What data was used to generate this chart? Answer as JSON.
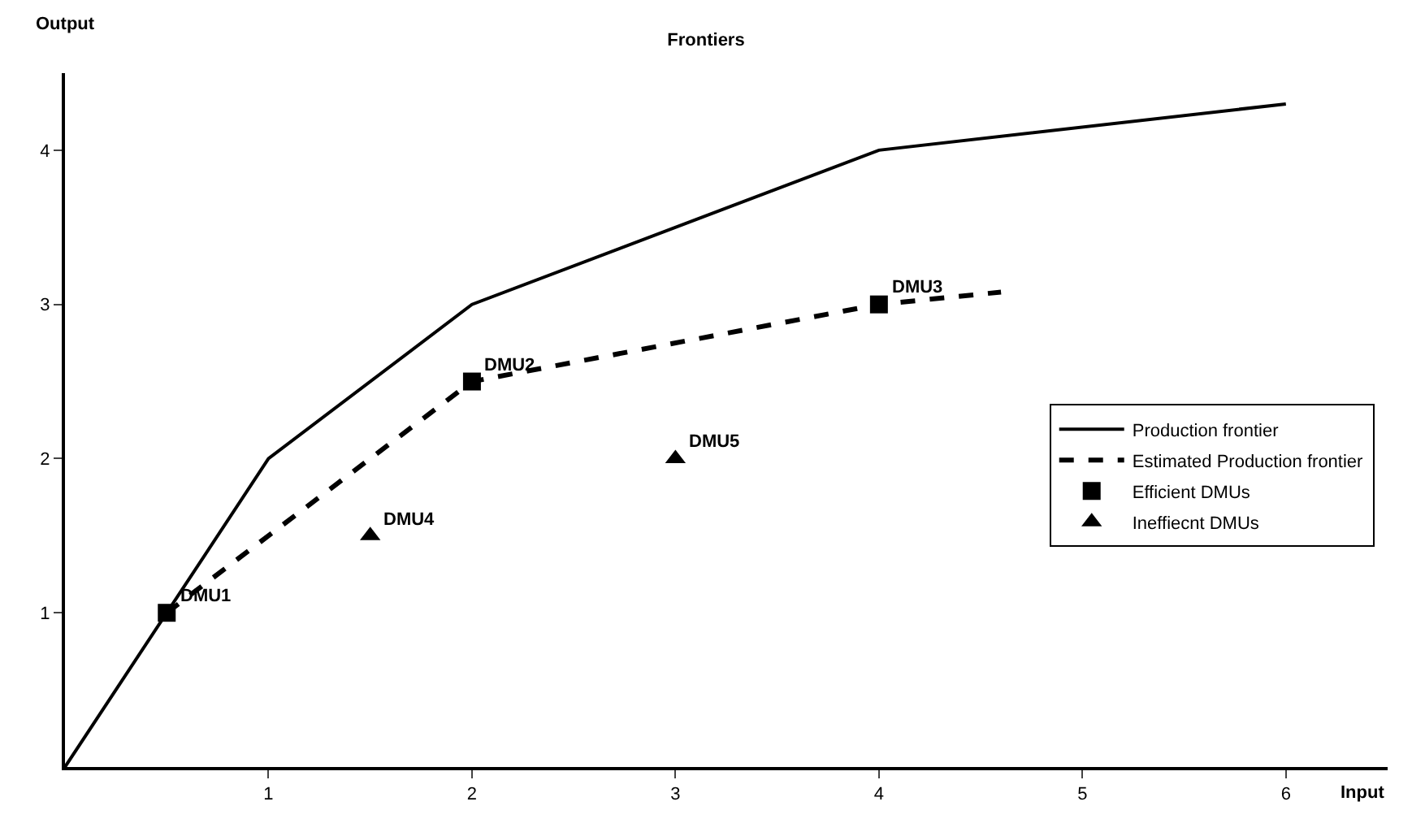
{
  "chart_data": {
    "type": "line",
    "title": "Frontiers",
    "xlabel": "Input",
    "ylabel": "Output",
    "xlim": [
      0,
      6.5
    ],
    "ylim": [
      0,
      4.5
    ],
    "xticks": [
      1,
      2,
      3,
      4,
      5,
      6
    ],
    "yticks": [
      1,
      2,
      3,
      4
    ],
    "legend": "right",
    "series": [
      {
        "name": "Production frontier",
        "color": "#000000",
        "line_style": "solid",
        "marker": "none",
        "x": [
          0,
          1,
          2,
          4,
          6
        ],
        "values": [
          0,
          2,
          3,
          4,
          4.3
        ]
      },
      {
        "name": "Estimated Production frontier",
        "color": "#000000",
        "line_style": "dashed",
        "marker": "none",
        "x": [
          0.5,
          2,
          4,
          4.6
        ],
        "values": [
          1,
          2.5,
          3,
          3.08
        ]
      },
      {
        "name": "Efficient DMUs",
        "type": "scatter",
        "color": "#000000",
        "marker": "square",
        "x": [
          0.5,
          2,
          4
        ],
        "values": [
          1,
          2.5,
          3
        ]
      },
      {
        "name": "Ineffiecnt DMUs",
        "type": "scatter",
        "color": "#000000",
        "marker": "triangle",
        "x": [
          1.5,
          3
        ],
        "values": [
          1.5,
          2
        ]
      }
    ],
    "annotations": [
      {
        "text": "DMU1",
        "x": 0.5,
        "y": 1
      },
      {
        "text": "DMU2",
        "x": 2,
        "y": 2.5
      },
      {
        "text": "DMU3",
        "x": 4,
        "y": 3
      },
      {
        "text": "DMU4",
        "x": 1.5,
        "y": 1.5
      },
      {
        "text": "DMU5",
        "x": 3,
        "y": 2
      }
    ]
  }
}
